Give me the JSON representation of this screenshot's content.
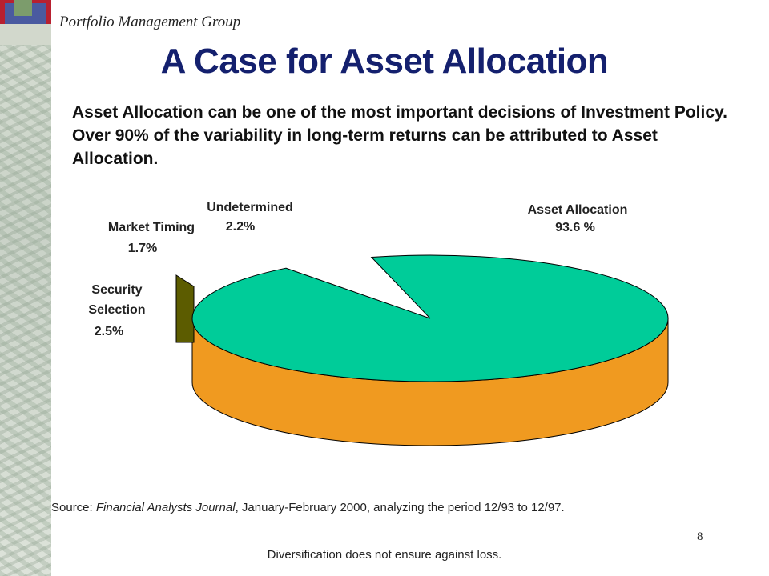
{
  "header": {
    "group_name": "Portfolio Management Group"
  },
  "title": "A Case for Asset Allocation",
  "intro": "Asset Allocation can be one of the most important decisions of Investment Policy.  Over 90% of the variability in long-term returns can be attributed to Asset Allocation.",
  "chart_data": {
    "type": "pie",
    "slices": [
      {
        "label": "Asset Allocation",
        "value": 93.6,
        "value_text": "93.6 %",
        "color": "#00cc99",
        "side_color": "#f09a20"
      },
      {
        "label": "Security Selection",
        "value": 2.5,
        "value_text": "2.5%",
        "color": "#808000",
        "side_color": "#5c5c00"
      },
      {
        "label": "Market Timing",
        "value": 1.7,
        "value_text": "1.7%",
        "color": "#3333cc",
        "side_color": "#222299"
      },
      {
        "label": "Undetermined",
        "value": 2.2,
        "value_text": "2.2%",
        "color": "#b0b0b0",
        "side_color": "#888888"
      }
    ],
    "extra_slice_color": "#ccccff",
    "style": "3d-exploded"
  },
  "footer": {
    "source_prefix": "Source: ",
    "source_journal": "Financial Analysts Journal",
    "source_rest": ", January-February 2000, analyzing the period 12/93 to 12/97.",
    "page_number": "8",
    "disclaimer": "Diversification does not ensure against loss."
  }
}
